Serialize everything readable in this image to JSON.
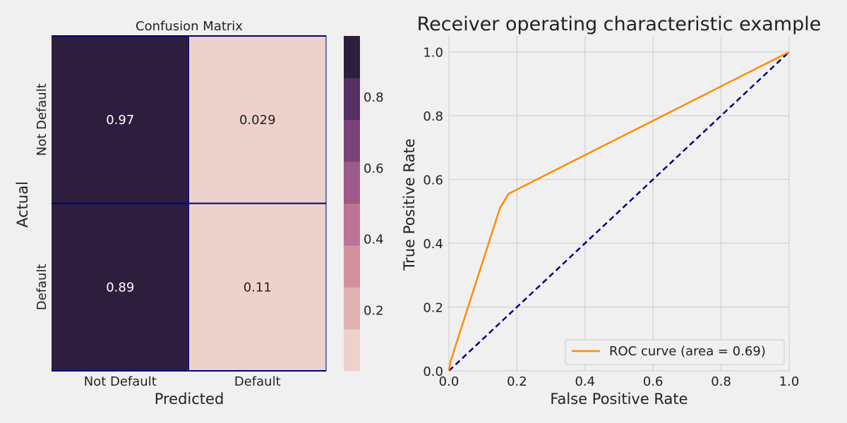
{
  "chart_data": [
    {
      "type": "heatmap",
      "title": "Confusion Matrix",
      "xlabel": "Predicted",
      "ylabel": "Actual",
      "x_categories": [
        "Not Default",
        "Default"
      ],
      "y_categories": [
        "Not Default",
        "Default"
      ],
      "values": [
        [
          0.97,
          0.029
        ],
        [
          0.89,
          0.11
        ]
      ],
      "value_labels": [
        [
          "0.97",
          "0.029"
        ],
        [
          "0.89",
          "0.11"
        ]
      ],
      "colorbar": {
        "range": [
          0.029,
          0.97
        ],
        "ticks": [
          0.2,
          0.4,
          0.6,
          0.8
        ],
        "tick_labels": [
          "0.2",
          "0.4",
          "0.6",
          "0.8"
        ],
        "colors": [
          "#edd1cb",
          "#e2b1b1",
          "#d4909e",
          "#bd7493",
          "#9e5a88",
          "#7b4479",
          "#553163",
          "#2d1e3e"
        ]
      },
      "grid_line_color": "#000080"
    },
    {
      "type": "line",
      "title": "Receiver operating characteristic example",
      "xlabel": "False Positive Rate",
      "ylabel": "True Positive Rate",
      "xlim": [
        0.0,
        1.0
      ],
      "ylim": [
        0.0,
        1.05
      ],
      "x_ticks": [
        0.0,
        0.2,
        0.4,
        0.6,
        0.8,
        1.0
      ],
      "x_tick_labels": [
        "0.0",
        "0.2",
        "0.4",
        "0.6",
        "0.8",
        "1.0"
      ],
      "y_ticks": [
        0.0,
        0.2,
        0.4,
        0.6,
        0.8,
        1.0
      ],
      "y_tick_labels": [
        "0.0",
        "0.2",
        "0.4",
        "0.6",
        "0.8",
        "1.0"
      ],
      "grid": true,
      "legend_position": "bottom-right",
      "series": [
        {
          "name": "ROC curve (area = 0.69)",
          "color": "#ff8c00",
          "style": "solid",
          "x": [
            0.0,
            0.005,
            0.15,
            0.175,
            1.0
          ],
          "y": [
            0.0,
            0.03,
            0.51,
            0.555,
            1.0
          ]
        },
        {
          "color": "#000080",
          "style": "dashed",
          "x": [
            0.0,
            1.0
          ],
          "y": [
            0.0,
            1.0
          ]
        }
      ]
    }
  ]
}
